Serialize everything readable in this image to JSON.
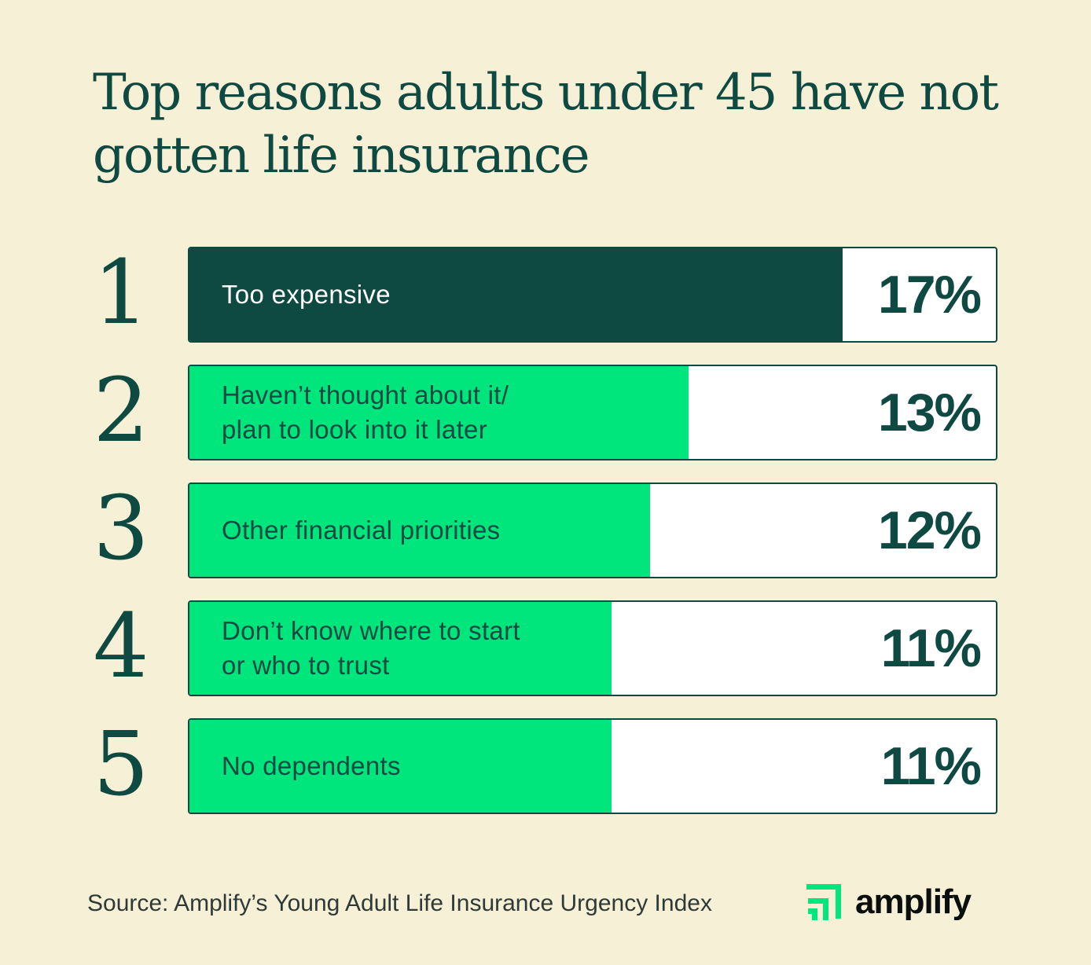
{
  "title": "Top reasons adults under 45 have not gotten life insurance",
  "colors": {
    "background": "#f6f0d6",
    "primary": "#0f4a42",
    "highlight": "#00e57c",
    "bar_track": "#ffffff"
  },
  "chart_data": {
    "type": "bar",
    "orientation": "horizontal",
    "title": "Top reasons adults under 45 have not gotten life insurance",
    "ranks": [
      "1",
      "2",
      "3",
      "4",
      "5"
    ],
    "categories": [
      "Too expensive",
      "Haven’t thought about it/\nplan to look into it later",
      "Other financial priorities",
      "Don’t know where to start\nor who to trust",
      "No dependents"
    ],
    "values": [
      17,
      13,
      12,
      11,
      11
    ],
    "value_labels": [
      "17%",
      "13%",
      "12%",
      "11%",
      "11%"
    ],
    "unit": "%",
    "xlim": [
      0,
      21
    ],
    "grid": false,
    "legend": "none"
  },
  "source": "Source: Amplify’s Young Adult Life Insurance Urgency Index",
  "logo": {
    "text": "amplify",
    "icon": "amplify-logo-icon"
  }
}
